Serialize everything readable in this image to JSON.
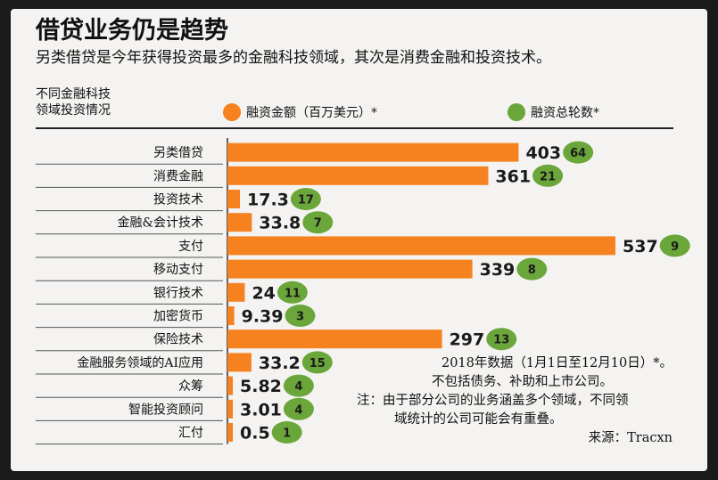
{
  "title": "借贷业务仍是趋势",
  "subtitle": "另类借贷是今年获得投资最多的金融科技领域，其次是消费金融和投资技术。",
  "category_header": [
    "不同金融科技",
    "领域投资情况"
  ],
  "legend": {
    "amount_label": "融资金额（百万美元）*",
    "rounds_label": "融资总轮数*",
    "amount_color": "#f5821f",
    "rounds_color": "#6aa63a"
  },
  "notes": {
    "line1": "2018年数据（1月1日至12月10日）*。",
    "line2": "不包括债务、补助和上市公司。",
    "line3": "注：由于部分公司的业务涵盖多个领域，不同领",
    "line4": "域统计的公司可能会有重叠。",
    "line5": "来源：Tracxn"
  },
  "chart_data": {
    "type": "bar",
    "orientation": "horizontal",
    "title": "借贷业务仍是趋势",
    "categories": [
      "另类借贷",
      "消费金融",
      "投资技术",
      "金融&会计技术",
      "支付",
      "移动支付",
      "银行技术",
      "加密货币",
      "保险技术",
      "金融服务领域的AI应用",
      "众筹",
      "智能投资顾问",
      "汇付"
    ],
    "series": [
      {
        "name": "融资金额（百万美元）*",
        "values": [
          403,
          361,
          17.3,
          33.8,
          537,
          339,
          24,
          9.39,
          297,
          33.2,
          5.82,
          3.01,
          0.5
        ],
        "labels": [
          "403",
          "361",
          "17.3",
          "33.8",
          "537",
          "339",
          "24",
          "9.39",
          "297",
          "33.2",
          "5.82",
          "3.01",
          "0.5"
        ]
      },
      {
        "name": "融资总轮数*",
        "values": [
          64,
          21,
          17,
          7,
          9,
          8,
          11,
          3,
          13,
          15,
          4,
          4,
          1
        ]
      }
    ],
    "xlim": [
      0,
      537
    ],
    "grid": false,
    "legend_position": "top"
  }
}
